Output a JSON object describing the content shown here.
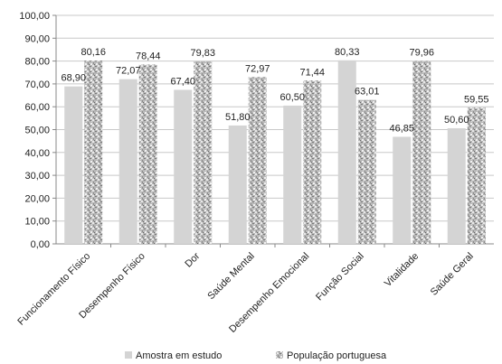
{
  "chart_data": {
    "type": "bar",
    "categories": [
      "Funcionamento Físico",
      "Desempenho Físico",
      "Dor",
      "Saúde Mental",
      "Desempenho Emocional",
      "Função Social",
      "Vitalidade",
      "Saúde Geral"
    ],
    "series": [
      {
        "name": "Amostra em estudo",
        "values": [
          68.9,
          72.07,
          67.4,
          51.8,
          60.5,
          80.33,
          46.85,
          50.6
        ],
        "labels": [
          "68,90",
          "72,07",
          "67,40",
          "51,80",
          "60,50",
          "80,33",
          "46,85",
          "50,60"
        ]
      },
      {
        "name": "População portuguesa",
        "values": [
          80.16,
          78.44,
          79.83,
          72.97,
          71.44,
          63.01,
          79.96,
          59.55
        ],
        "labels": [
          "80,16",
          "78,44",
          "79,83",
          "72,97",
          "71,44",
          "63,01",
          "79,96",
          "59,55"
        ]
      }
    ],
    "ylim": [
      0,
      100
    ],
    "yticks": [
      "0,00",
      "10,00",
      "20,00",
      "30,00",
      "40,00",
      "50,00",
      "60,00",
      "70,00",
      "80,00",
      "90,00",
      "100,00"
    ],
    "grid": true,
    "legend": "bottom",
    "colors": {
      "series1": "#d4d4d4",
      "series2": "#a9a9a9",
      "grid": "#c8c8c8",
      "axis": "#888888"
    }
  }
}
